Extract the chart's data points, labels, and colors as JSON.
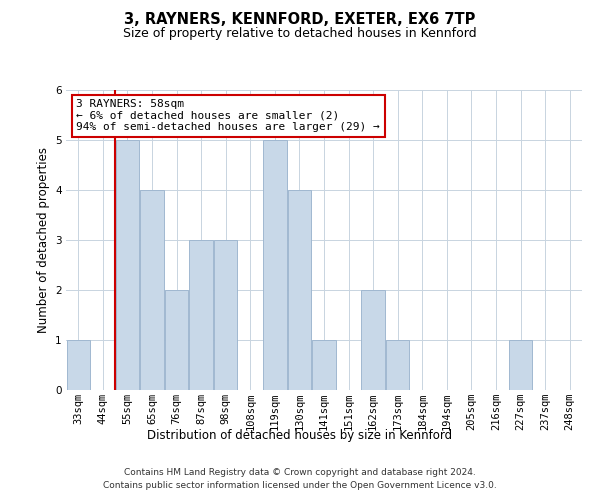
{
  "title": "3, RAYNERS, KENNFORD, EXETER, EX6 7TP",
  "subtitle": "Size of property relative to detached houses in Kennford",
  "xlabel": "Distribution of detached houses by size in Kennford",
  "ylabel": "Number of detached properties",
  "footer_line1": "Contains HM Land Registry data © Crown copyright and database right 2024.",
  "footer_line2": "Contains public sector information licensed under the Open Government Licence v3.0.",
  "categories": [
    "33sqm",
    "44sqm",
    "55sqm",
    "65sqm",
    "76sqm",
    "87sqm",
    "98sqm",
    "108sqm",
    "119sqm",
    "130sqm",
    "141sqm",
    "151sqm",
    "162sqm",
    "173sqm",
    "184sqm",
    "194sqm",
    "205sqm",
    "216sqm",
    "227sqm",
    "237sqm",
    "248sqm"
  ],
  "values": [
    1,
    0,
    5,
    4,
    2,
    3,
    3,
    0,
    5,
    4,
    1,
    0,
    2,
    1,
    0,
    0,
    0,
    0,
    1,
    0,
    0
  ],
  "bar_color": "#c8d8e8",
  "bar_edge_color": "#a0b8d0",
  "ylim": [
    0,
    6
  ],
  "yticks": [
    0,
    1,
    2,
    3,
    4,
    5,
    6
  ],
  "annotation_text": "3 RAYNERS: 58sqm\n← 6% of detached houses are smaller (2)\n94% of semi-detached houses are larger (29) →",
  "annotation_box_color": "#ffffff",
  "annotation_border_color": "#cc0000",
  "vline_color": "#cc0000",
  "vline_x_index": 1.5,
  "background_color": "#ffffff",
  "grid_color": "#c8d4e0",
  "title_fontsize": 10.5,
  "subtitle_fontsize": 9,
  "ylabel_fontsize": 8.5,
  "xlabel_fontsize": 8.5,
  "tick_fontsize": 7.5,
  "annotation_fontsize": 8,
  "footer_fontsize": 6.5
}
